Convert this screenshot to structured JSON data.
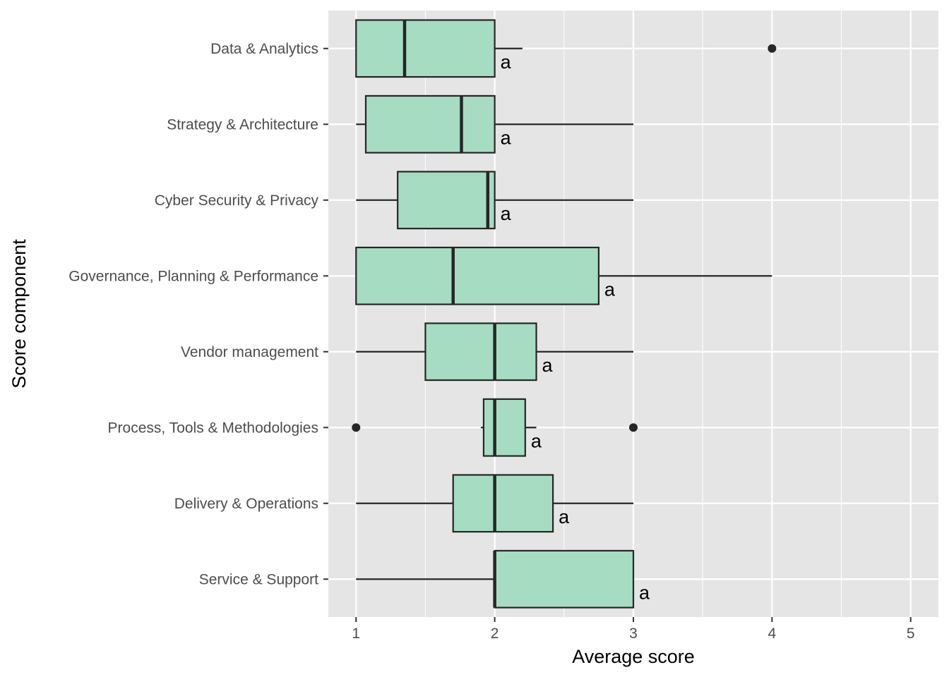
{
  "chart_data": {
    "type": "boxplot",
    "orientation": "horizontal",
    "xlabel": "Average score",
    "ylabel": "Score component",
    "xlim": [
      0.8,
      5.2
    ],
    "x_ticks": [
      1,
      2,
      3,
      4,
      5
    ],
    "grid": true,
    "legend": "none",
    "categories": [
      "Data & Analytics",
      "Strategy & Architecture",
      "Cyber Security & Privacy",
      "Governance, Planning  & Performance",
      "Vendor management",
      "Process, Tools & Methodologies",
      "Delivery & Operations",
      "Service & Support"
    ],
    "boxes": [
      {
        "category": "Data & Analytics",
        "whisker_low": 1.0,
        "q1": 1.0,
        "median": 1.35,
        "q3": 2.0,
        "whisker_high": 2.2,
        "outliers": [
          4.0
        ],
        "group_label": "a"
      },
      {
        "category": "Strategy & Architecture",
        "whisker_low": 1.0,
        "q1": 1.07,
        "median": 1.76,
        "q3": 2.0,
        "whisker_high": 3.0,
        "outliers": [],
        "group_label": "a"
      },
      {
        "category": "Cyber Security & Privacy",
        "whisker_low": 1.0,
        "q1": 1.3,
        "median": 1.95,
        "q3": 2.0,
        "whisker_high": 3.0,
        "outliers": [],
        "group_label": "a"
      },
      {
        "category": "Governance, Planning  & Performance",
        "whisker_low": 1.0,
        "q1": 1.0,
        "median": 1.7,
        "q3": 2.75,
        "whisker_high": 4.0,
        "outliers": [],
        "group_label": "a"
      },
      {
        "category": "Vendor management",
        "whisker_low": 1.0,
        "q1": 1.5,
        "median": 2.0,
        "q3": 2.3,
        "whisker_high": 3.0,
        "outliers": [],
        "group_label": "a"
      },
      {
        "category": "Process, Tools & Methodologies",
        "whisker_low": 1.9,
        "q1": 1.92,
        "median": 2.0,
        "q3": 2.22,
        "whisker_high": 2.3,
        "outliers": [
          1.0,
          3.0
        ],
        "group_label": "a"
      },
      {
        "category": "Delivery & Operations",
        "whisker_low": 1.0,
        "q1": 1.7,
        "median": 2.0,
        "q3": 2.42,
        "whisker_high": 3.0,
        "outliers": [],
        "group_label": "a"
      },
      {
        "category": "Service & Support",
        "whisker_low": 1.0,
        "q1": 2.0,
        "median": 2.0,
        "q3": 3.0,
        "whisker_high": 3.0,
        "outliers": [],
        "group_label": "a"
      }
    ],
    "colors": {
      "panel_background": "#e5e5e5",
      "grid": "#ffffff",
      "box_fill": "#a6dcc2",
      "box_stroke": "#262626",
      "tick_text": "#4d4d4d"
    }
  }
}
